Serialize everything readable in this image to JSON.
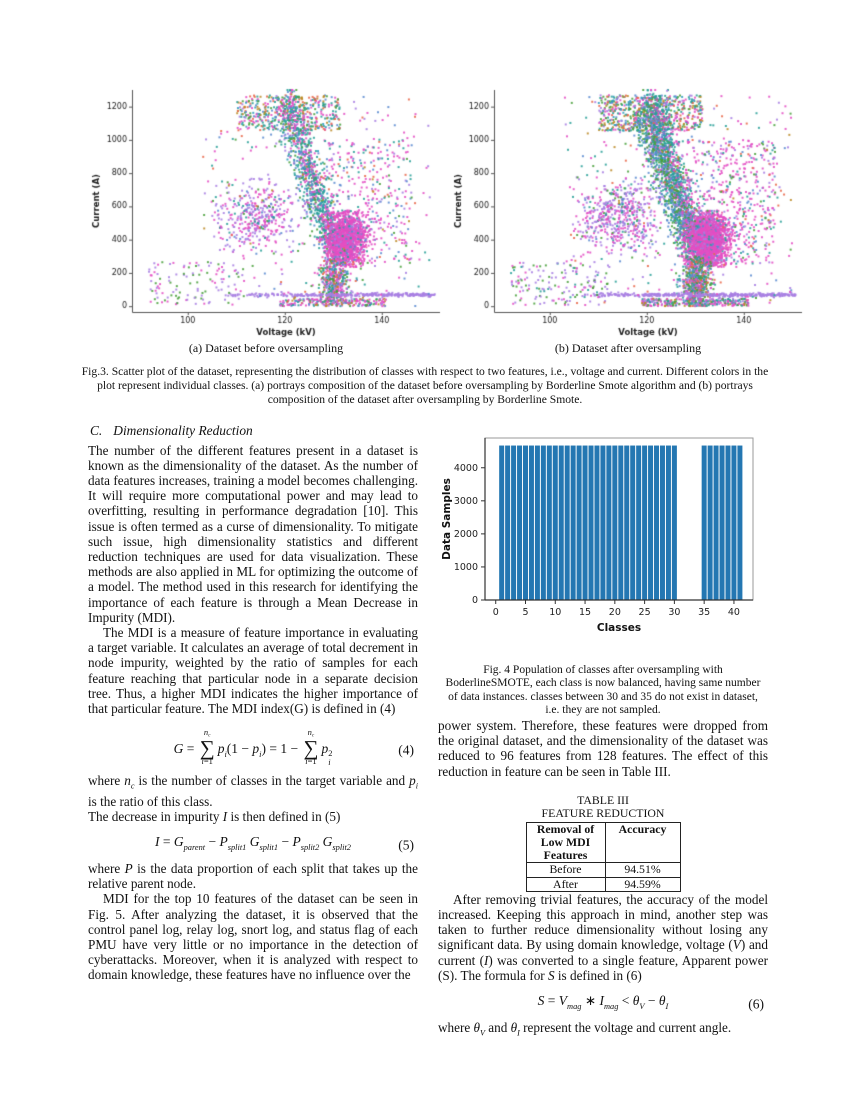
{
  "fig3": {
    "caption": "Fig.3. Scatter plot of the dataset, representing the distribution of classes with respect to two features, i.e., voltage and current. Different colors in the plot represent individual classes. (a) portrays composition of the dataset before oversampling by Borderline Smote algorithm and (b) portrays composition of the dataset after oversampling by Borderline Smote."
  },
  "chart_data": [
    {
      "type": "scatter",
      "xlabel": "Voltage (kV)",
      "ylabel": "Current (A)",
      "xticks": [
        100,
        120,
        140
      ],
      "yticks": [
        0,
        200,
        400,
        600,
        800,
        1000,
        1200
      ],
      "xlim": [
        88.5,
        152
      ],
      "ylim": [
        -35,
        1300
      ],
      "panels": [
        {
          "caption": "(a) Dataset before oversampling",
          "seed": 101
        },
        {
          "caption": "(b) Dataset after oversampling",
          "seed": 202
        }
      ],
      "palette": {
        "orange": "#e8684a",
        "mustard": "#bc8b28",
        "green": "#4aa13c",
        "teal": "#2aa198",
        "cyan": "#2e9bc0",
        "blue": "#5b8bd0",
        "purple": "#a97fe3",
        "magenta": "#e44fc4",
        "pink": "#ec5fa8"
      },
      "clusters": [
        {
          "kind": "uniform",
          "n": [
            430,
            620
          ],
          "x": [
            110,
            131.5
          ],
          "y": [
            1055,
            1268
          ],
          "colors": {
            "green": 0.16,
            "teal": 0.18,
            "magenta": 0.2,
            "orange": 0.12,
            "mustard": 0.12,
            "blue": 0.08,
            "cyan": 0.07,
            "purple": 0.07
          }
        },
        {
          "kind": "band",
          "n": [
            950,
            1400
          ],
          "x0": 120.6,
          "y0": 1260,
          "x1": 130.8,
          "y1": 300,
          "sx": 1.3,
          "sy": 45,
          "colors": {
            "teal": 0.42,
            "magenta": 0.3,
            "green": 0.07,
            "blue": 0.06,
            "purple": 0.05,
            "cyan": 0.05,
            "mustard": 0.05
          }
        },
        {
          "kind": "band",
          "n": [
            140,
            650
          ],
          "x0": 118.8,
          "y0": 1150,
          "x1": 128.5,
          "y1": 350,
          "sx": 1.2,
          "sy": 60,
          "colors": {
            "blue": 0.35,
            "green": 0.3,
            "teal": 0.2,
            "purple": 0.15
          }
        },
        {
          "kind": "gauss",
          "n": [
            1500,
            2100
          ],
          "cx": 132.6,
          "cy": 400,
          "sx": 2.1,
          "sy": 85,
          "clipx": [
            127.2,
            140
          ],
          "clipy": [
            235,
            575
          ],
          "colors": {
            "magenta": 0.8,
            "purple": 0.08,
            "blue": 0.05,
            "pink": 0.05,
            "teal": 0.02
          }
        },
        {
          "kind": "uniform",
          "n": [
            330,
            480
          ],
          "x": [
            128,
            146.5
          ],
          "y": [
            255,
            1000
          ],
          "colors": {
            "magenta": 0.55,
            "teal": 0.12,
            "blue": 0.12,
            "purple": 0.11,
            "green": 0.05,
            "orange": 0.05
          }
        },
        {
          "kind": "gauss",
          "n": [
            400,
            520
          ],
          "cx": 114.5,
          "cy": 540,
          "sx": 4.2,
          "sy": 110,
          "clipx": [
            104,
            123
          ],
          "clipy": [
            290,
            780
          ],
          "colors": {
            "purple": 0.42,
            "magenta": 0.4,
            "teal": 0.07,
            "blue": 0.06,
            "green": 0.05
          }
        },
        {
          "kind": "gauss",
          "n": [
            430,
            600
          ],
          "cx": 130.3,
          "cy": 140,
          "sx": 1.5,
          "sy": 90,
          "clipx": [
            126,
            135
          ],
          "clipy": [
            0,
            305
          ],
          "colors": {
            "teal": 0.26,
            "magenta": 0.24,
            "green": 0.16,
            "purple": 0.1,
            "blue": 0.1,
            "orange": 0.08,
            "mustard": 0.06
          }
        },
        {
          "kind": "hline",
          "n": [
            300,
            380
          ],
          "x": [
            106.5,
            151
          ],
          "bias": 0.65,
          "cy": 68,
          "sy": 5,
          "colors": {
            "purple": 1.0
          }
        },
        {
          "kind": "uniform",
          "n": [
            120,
            150
          ],
          "x": [
            92,
            112
          ],
          "y": [
            5,
            265
          ],
          "colors": {
            "purple": 0.45,
            "green": 0.3,
            "magenta": 0.18,
            "teal": 0.07
          }
        },
        {
          "kind": "uniform",
          "n": [
            240,
            330
          ],
          "x": [
            103,
            150
          ],
          "y": [
            0,
            1270
          ],
          "colors": {
            "magenta": 0.3,
            "purple": 0.2,
            "teal": 0.15,
            "green": 0.12,
            "blue": 0.08,
            "orange": 0.08,
            "mustard": 0.07
          }
        },
        {
          "kind": "uniform",
          "n": [
            220,
            300
          ],
          "x": [
            119,
            141
          ],
          "y": [
            0,
            45
          ],
          "colors": {
            "magenta": 0.4,
            "teal": 0.2,
            "purple": 0.12,
            "mustard": 0.1,
            "green": 0.1,
            "blue": 0.08
          }
        }
      ]
    },
    {
      "type": "bar",
      "xlabel": "Classes",
      "ylabel": "Data Samples",
      "bar_color": "#2477b2",
      "xticks": [
        0,
        5,
        10,
        15,
        20,
        25,
        30,
        35,
        40
      ],
      "yticks": [
        0,
        1000,
        2000,
        3000,
        4000
      ],
      "xlim": [
        -1.8,
        43.2
      ],
      "ylim": [
        0,
        4900
      ],
      "categories": [
        1,
        2,
        3,
        4,
        5,
        6,
        7,
        8,
        9,
        10,
        11,
        12,
        13,
        14,
        15,
        16,
        17,
        18,
        19,
        20,
        21,
        22,
        23,
        24,
        25,
        26,
        27,
        28,
        29,
        30,
        35,
        36,
        37,
        38,
        39,
        40,
        41
      ],
      "values": [
        4672,
        4672,
        4672,
        4672,
        4672,
        4672,
        4672,
        4672,
        4672,
        4672,
        4672,
        4672,
        4672,
        4672,
        4672,
        4672,
        4672,
        4672,
        4672,
        4672,
        4672,
        4672,
        4672,
        4672,
        4672,
        4672,
        4672,
        4672,
        4672,
        4672,
        4672,
        4672,
        4672,
        4672,
        4672,
        4672,
        4672
      ]
    }
  ],
  "section": {
    "heading_label": "C.",
    "heading_text": "Dimensionality Reduction",
    "p1": "The number of the different features present in a dataset is known as the dimensionality of the dataset. As the number of data features increases, training a model becomes challenging. It will require more computational power and may lead to overfitting, resulting in performance degradation [10]. This issue is often termed as a curse of dimensionality. To mitigate such issue, high dimensionality statistics and different reduction techniques are used for data visualization. These methods are also applied in ML for optimizing the outcome of a model. The method used in this research for identifying the importance of each feature is through a Mean Decrease in Impurity (MDI).",
    "p2": "The MDI is a measure of feature importance in evaluating a target variable. It calculates an average of total decrement in node impurity, weighted by the ratio of samples for each feature reaching that particular node in a separate decision tree. Thus, a higher MDI indicates the higher importance of that particular feature. The MDI index(G) is defined in (4)",
    "p3": "MDI for the top 10 features of the dataset can be seen in Fig. 5. After analyzing the dataset, it is observed that the control panel log, relay log, snort log, and status flag of each PMU have very little or no importance in the detection of cyberattacks. Moreover, when it is analyzed with respect to domain knowledge, these features have no influence over the",
    "p4": "power system. Therefore, these features were dropped from the original dataset, and the dimensionality of the dataset was reduced to 96 features from 128 features. The effect of this reduction in feature can be seen in Table III."
  },
  "rich": {
    "eq4": [
      {
        "s": "i",
        "t": "G"
      },
      {
        "t": " = "
      },
      {
        "s": "bigop",
        "t": "∑",
        "top": [
          {
            "s": "i",
            "t": "n"
          },
          {
            "s": "sub",
            "t": "c"
          }
        ],
        "bot": [
          {
            "s": "i",
            "t": "i"
          },
          {
            "t": "=1"
          }
        ]
      },
      {
        "s": "i",
        "t": "p"
      },
      {
        "s": "sub",
        "t": "i"
      },
      {
        "t": "(1 − "
      },
      {
        "s": "i",
        "t": "p"
      },
      {
        "s": "sub",
        "t": "i"
      },
      {
        "t": ") = 1 − "
      },
      {
        "s": "bigop",
        "t": "∑",
        "top": [
          {
            "s": "i",
            "t": "n"
          },
          {
            "s": "sub",
            "t": "c"
          }
        ],
        "bot": [
          {
            "s": "i",
            "t": "i"
          },
          {
            "t": "=1"
          }
        ]
      },
      {
        "s": "i",
        "t": "p"
      },
      {
        "s": "subsup",
        "sub": "i",
        "sup": "2"
      }
    ],
    "eq4_num": "(4)",
    "where4": [
      {
        "t": "where "
      },
      {
        "s": "i",
        "t": "n"
      },
      {
        "s": "sub",
        "t": "c"
      },
      {
        "t": " is the number of classes in the target variable and "
      },
      {
        "s": "i",
        "t": "p"
      },
      {
        "s": "sub",
        "t": "i"
      },
      {
        "t": " is the ratio of this class."
      }
    ],
    "p_decrease": [
      {
        "t": "The decrease in impurity "
      },
      {
        "s": "i",
        "t": "I"
      },
      {
        "t": " is then defined in (5)"
      }
    ],
    "eq5": [
      {
        "s": "i",
        "t": "I"
      },
      {
        "t": " = "
      },
      {
        "s": "i",
        "t": "G"
      },
      {
        "s": "sub",
        "t": "parent"
      },
      {
        "t": " − "
      },
      {
        "s": "i",
        "t": "P"
      },
      {
        "s": "sub",
        "t": "split1"
      },
      {
        "t": " "
      },
      {
        "s": "i",
        "t": "G"
      },
      {
        "s": "sub",
        "t": "split1"
      },
      {
        "t": " − "
      },
      {
        "s": "i",
        "t": "P"
      },
      {
        "s": "sub",
        "t": "split2"
      },
      {
        "t": " "
      },
      {
        "s": "i",
        "t": "G"
      },
      {
        "s": "sub",
        "t": "split2"
      }
    ],
    "eq5_num": "(5)",
    "where5": [
      {
        "t": "where "
      },
      {
        "s": "i",
        "t": "P"
      },
      {
        "t": " is the data proportion of each split that takes up the relative parent node."
      }
    ],
    "p5": [
      {
        "t": "After removing trivial features, the accuracy of the model increased. Keeping this approach in mind, another step was taken to further reduce dimensionality without losing any significant data. By using domain knowledge, voltage ("
      },
      {
        "s": "i",
        "t": "V"
      },
      {
        "t": ") and current ("
      },
      {
        "s": "i",
        "t": "I"
      },
      {
        "t": ") was converted to a single feature, Apparent power (S). The formula for "
      },
      {
        "s": "i",
        "t": "S"
      },
      {
        "t": " is defined in (6)"
      }
    ],
    "eq6": [
      {
        "s": "i",
        "t": "S"
      },
      {
        "t": " = "
      },
      {
        "s": "i",
        "t": "V"
      },
      {
        "s": "sub",
        "t": "mag"
      },
      {
        "t": " ∗ "
      },
      {
        "s": "i",
        "t": "I"
      },
      {
        "s": "sub",
        "t": "mag"
      },
      {
        "t": " < "
      },
      {
        "s": "i",
        "t": "θ"
      },
      {
        "s": "sub",
        "t": "V"
      },
      {
        "t": " − "
      },
      {
        "s": "i",
        "t": "θ"
      },
      {
        "s": "sub",
        "t": "I"
      }
    ],
    "eq6_num": "(6)",
    "where6": [
      {
        "t": "where "
      },
      {
        "s": "i",
        "t": "θ"
      },
      {
        "s": "sub",
        "t": "V"
      },
      {
        "t": " and "
      },
      {
        "s": "i",
        "t": "θ"
      },
      {
        "s": "sub",
        "t": "I"
      },
      {
        "t": " represent the voltage and current angle."
      }
    ]
  },
  "fig4": {
    "caption": "Fig. 4 Population of classes after oversampling with BoderlineSMOTE, each class is now balanced, having same number of data instances. classes between 30 and 35 do not exist in dataset, i.e. they are not sampled."
  },
  "table3": {
    "title1": "TABLE III",
    "title2": "FEATURE REDUCTION",
    "col1": "Removal of Low MDI Features",
    "col2": "Accuracy",
    "rows": [
      [
        "Before",
        "94.51%"
      ],
      [
        "After",
        "94.59%"
      ]
    ]
  }
}
